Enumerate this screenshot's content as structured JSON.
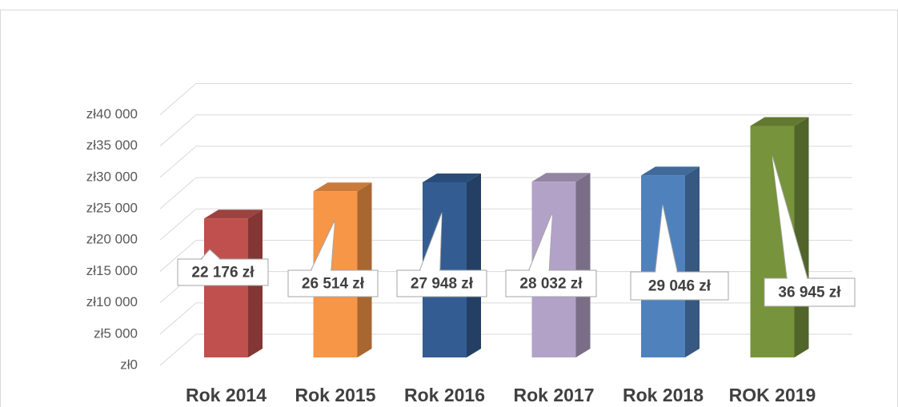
{
  "chart_data": {
    "type": "bar3d",
    "categories": [
      "Rok 2014",
      "Rok 2015",
      "Rok 2016",
      "Rok 2017",
      "Rok 2018",
      "ROK 2019"
    ],
    "values": [
      22176,
      26514,
      27948,
      28032,
      29046,
      36945
    ],
    "value_labels": [
      "22 176 zł",
      "26 514 zł",
      "27 948 zł",
      "28 032 zł",
      "29 046 zł",
      "36 945 zł"
    ],
    "colors": [
      "#c0504d",
      "#f79646",
      "#335d92",
      "#b3a2c7",
      "#4f81bd",
      "#77933c"
    ],
    "ylim": [
      0,
      40000
    ],
    "yticks": [
      {
        "value": 0,
        "label": "zł0"
      },
      {
        "value": 5000,
        "label": "zł5 000"
      },
      {
        "value": 10000,
        "label": "zł10 000"
      },
      {
        "value": 15000,
        "label": "zł15 000"
      },
      {
        "value": 20000,
        "label": "zł20 000"
      },
      {
        "value": 25000,
        "label": "zł25 000"
      },
      {
        "value": 30000,
        "label": "zł30 000"
      },
      {
        "value": 35000,
        "label": "zł35 000"
      },
      {
        "value": 40000,
        "label": "zł40 000"
      }
    ],
    "grid": true
  }
}
